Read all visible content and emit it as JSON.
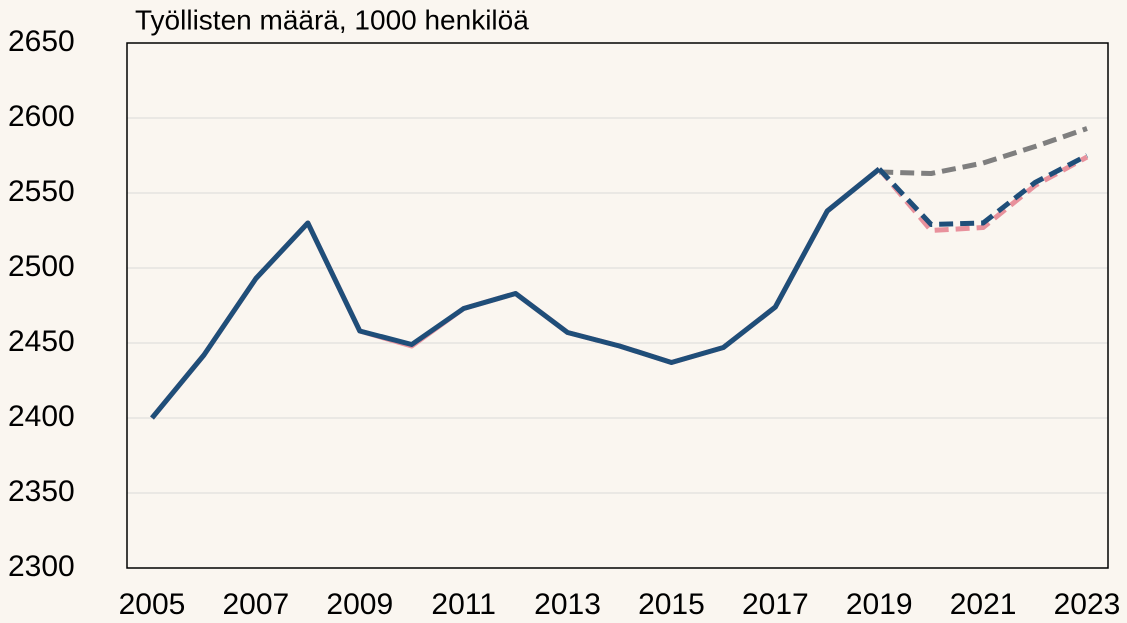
{
  "chart_data": {
    "type": "line",
    "title": "Työllisten  määrä, 1000 henkilöä",
    "x": [
      2005,
      2006,
      2007,
      2008,
      2009,
      2010,
      2011,
      2012,
      2013,
      2014,
      2015,
      2016,
      2017,
      2018,
      2019,
      2020,
      2021,
      2022,
      2023
    ],
    "series": [
      {
        "color": "#7f7f7f",
        "dash": true,
        "values": [
          null,
          null,
          null,
          null,
          null,
          null,
          null,
          null,
          null,
          null,
          null,
          null,
          null,
          null,
          2564,
          2563,
          2570,
          2581,
          2593
        ]
      },
      {
        "color": "#e8919c",
        "dash": false,
        "values": [
          2400,
          2442,
          2493,
          2530,
          2458,
          2448,
          2473,
          2483,
          2457,
          2448,
          2437,
          2447,
          2474,
          2538,
          2566,
          null,
          null,
          null,
          null
        ]
      },
      {
        "color": "#e8919c",
        "dash": true,
        "values": [
          null,
          null,
          null,
          null,
          null,
          null,
          null,
          null,
          null,
          null,
          null,
          null,
          null,
          null,
          2566,
          2525,
          2527,
          2555,
          2574
        ]
      },
      {
        "color": "#1f4e79",
        "dash": false,
        "values": [
          2400,
          2442,
          2493,
          2530,
          2458,
          2449,
          2473,
          2483,
          2457,
          2448,
          2437,
          2447,
          2474,
          2538,
          2566,
          null,
          null,
          null,
          null
        ]
      },
      {
        "color": "#1f4e79",
        "dash": true,
        "values": [
          null,
          null,
          null,
          null,
          null,
          null,
          null,
          null,
          null,
          null,
          null,
          null,
          null,
          null,
          2566,
          2529,
          2530,
          2557,
          2575
        ]
      }
    ],
    "xlim": [
      2005,
      2023
    ],
    "xticks": [
      2005,
      2007,
      2009,
      2011,
      2013,
      2015,
      2017,
      2019,
      2021,
      2023
    ],
    "ylim": [
      2300,
      2650
    ],
    "yticks": [
      2300,
      2350,
      2400,
      2450,
      2500,
      2550,
      2600,
      2650
    ],
    "grid": true
  }
}
